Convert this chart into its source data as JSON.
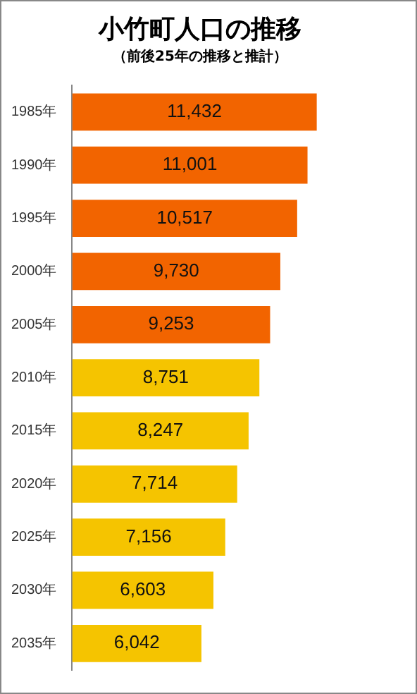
{
  "chart_data": {
    "type": "bar",
    "orientation": "horizontal",
    "title": "小竹町人口の推移",
    "subtitle": "（前後25年の推移と推計）",
    "categories": [
      "1985年",
      "1990年",
      "1995年",
      "2000年",
      "2005年",
      "2010年",
      "2015年",
      "2020年",
      "2025年",
      "2030年",
      "2035年"
    ],
    "values": [
      11432,
      11001,
      10517,
      9730,
      9253,
      8751,
      8247,
      7714,
      7156,
      6603,
      6042
    ],
    "colors": [
      "#f26400",
      "#f26400",
      "#f26400",
      "#f26400",
      "#f26400",
      "#f5c400",
      "#f5c400",
      "#f5c400",
      "#f5c400",
      "#f5c400",
      "#f5c400"
    ],
    "value_labels": [
      "11,432",
      "11,001",
      "10,517",
      "9,730",
      "9,253",
      "8,751",
      "8,247",
      "7,714",
      "7,156",
      "6,603",
      "6,042"
    ],
    "legend": false,
    "tick_labels": "y"
  }
}
